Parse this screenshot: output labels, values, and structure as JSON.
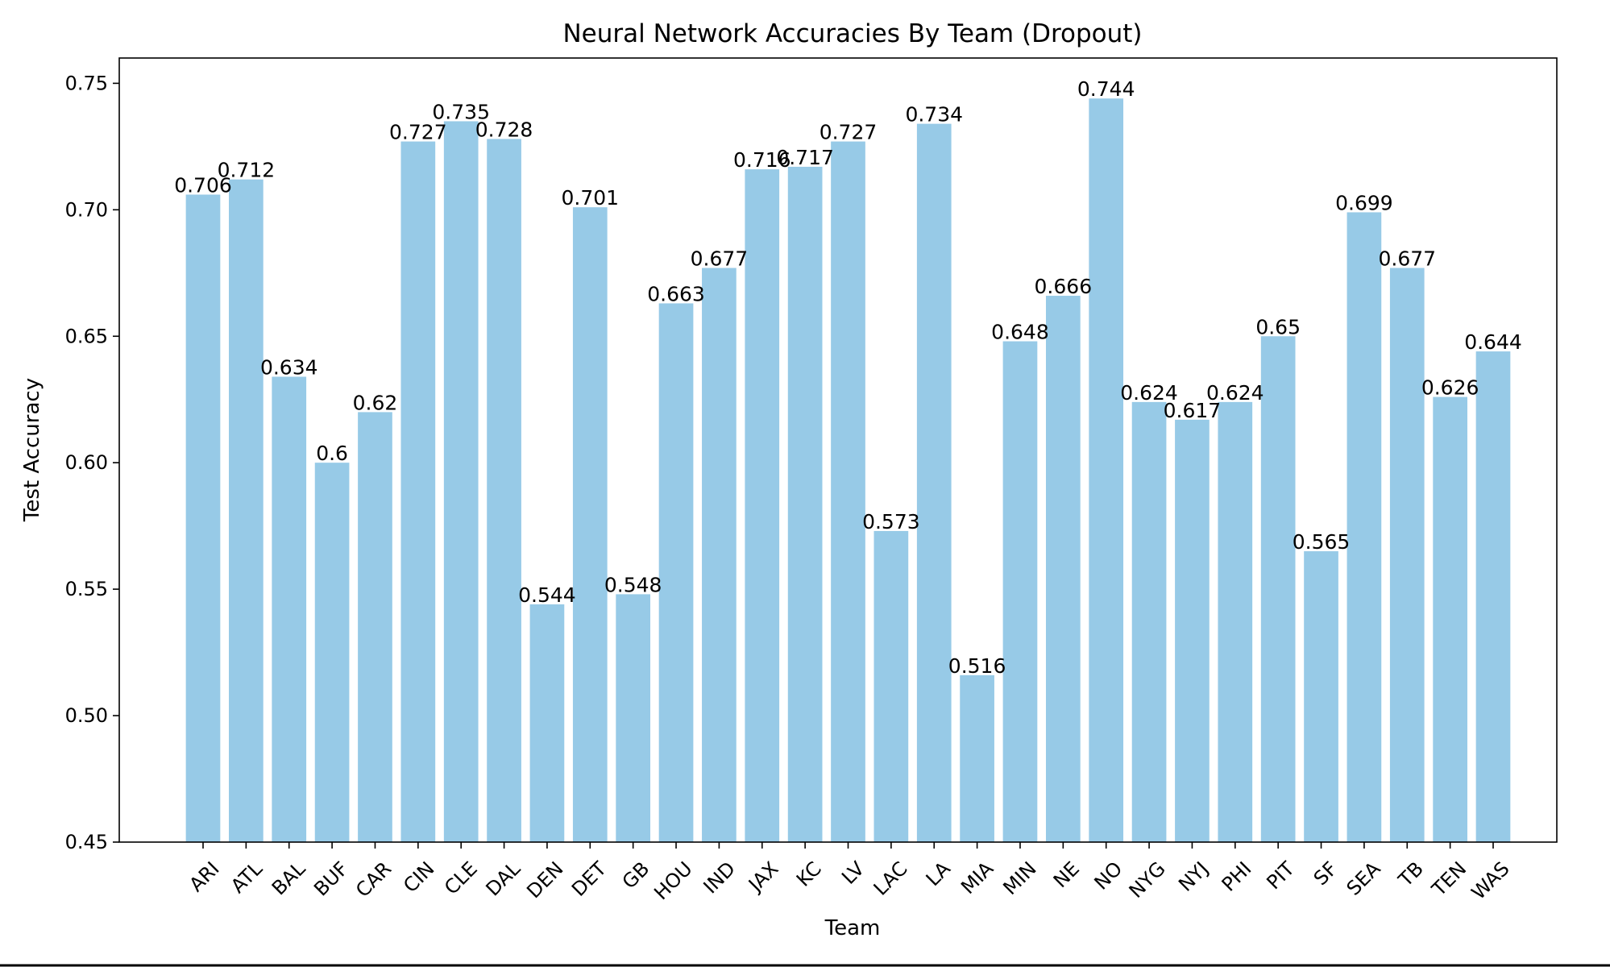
{
  "chart_data": {
    "type": "bar",
    "title": "Neural Network Accuracies By Team (Dropout)",
    "xlabel": "Team",
    "ylabel": "Test Accuracy",
    "ylim": [
      0.45,
      0.76
    ],
    "yticks": [
      "0.45",
      "0.50",
      "0.55",
      "0.60",
      "0.65",
      "0.70",
      "0.75"
    ],
    "categories": [
      "ARI",
      "ATL",
      "BAL",
      "BUF",
      "CAR",
      "CIN",
      "CLE",
      "DAL",
      "DEN",
      "DET",
      "GB",
      "HOU",
      "IND",
      "JAX",
      "KC",
      "LV",
      "LAC",
      "LA",
      "MIA",
      "MIN",
      "NE",
      "NO",
      "NYG",
      "NYJ",
      "PHI",
      "PIT",
      "SF",
      "SEA",
      "TB",
      "TEN",
      "WAS"
    ],
    "values": [
      0.706,
      0.712,
      0.634,
      0.6,
      0.62,
      0.727,
      0.735,
      0.728,
      0.544,
      0.701,
      0.548,
      0.663,
      0.677,
      0.716,
      0.717,
      0.727,
      0.573,
      0.734,
      0.516,
      0.648,
      0.666,
      0.744,
      0.624,
      0.617,
      0.624,
      0.65,
      0.565,
      0.699,
      0.677,
      0.626,
      0.644
    ],
    "value_labels": [
      "0.706",
      "0.712",
      "0.634",
      "0.6",
      "0.62",
      "0.727",
      "0.735",
      "0.728",
      "0.544",
      "0.701",
      "0.548",
      "0.663",
      "0.677",
      "0.716",
      "0.717",
      "0.727",
      "0.573",
      "0.734",
      "0.516",
      "0.648",
      "0.666",
      "0.744",
      "0.624",
      "0.617",
      "0.624",
      "0.65",
      "0.565",
      "0.699",
      "0.677",
      "0.626",
      "0.644"
    ],
    "bar_color": "#97cae7",
    "grid": false,
    "legend": "none"
  }
}
